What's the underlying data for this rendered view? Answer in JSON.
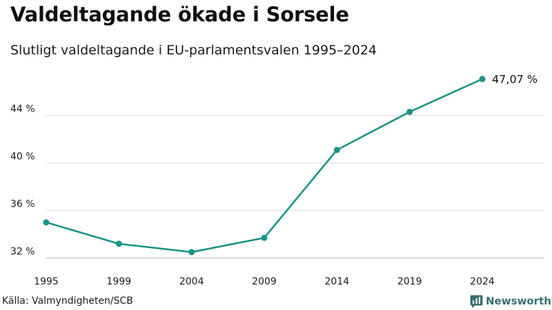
{
  "header": {
    "title": "Valdeltagande ökade i Sorsele",
    "subtitle": "Slutligt valdeltagande i EU-parlamentsvalen 1995–2024"
  },
  "footer": {
    "source": "Källa: Valmyndigheten/SCB",
    "brand": "Newsworthy"
  },
  "colors": {
    "line": "#1a9384",
    "grid": "#dddddd",
    "brand": "#3a6f73"
  },
  "icons": {
    "brand": "newsworthy-logo-icon"
  },
  "chart_data": {
    "type": "line",
    "title": "Valdeltagande ökade i Sorsele",
    "subtitle": "Slutligt valdeltagande i EU-parlamentsvalen 1995–2024",
    "xlabel": "",
    "ylabel": "",
    "categories": [
      "1995",
      "1999",
      "2004",
      "2009",
      "2014",
      "2019",
      "2024"
    ],
    "series": [
      {
        "name": "Valdeltagande",
        "values": [
          35.0,
          33.2,
          32.5,
          33.7,
          41.1,
          44.3,
          47.07
        ]
      }
    ],
    "ylim": [
      31.8,
      48.5
    ],
    "yticks": [
      32,
      36,
      40,
      44
    ],
    "ytick_labels": [
      "32 %",
      "36 %",
      "40 %",
      "44 %"
    ],
    "grid": true,
    "end_label": "47,07 %",
    "legend": "none"
  }
}
